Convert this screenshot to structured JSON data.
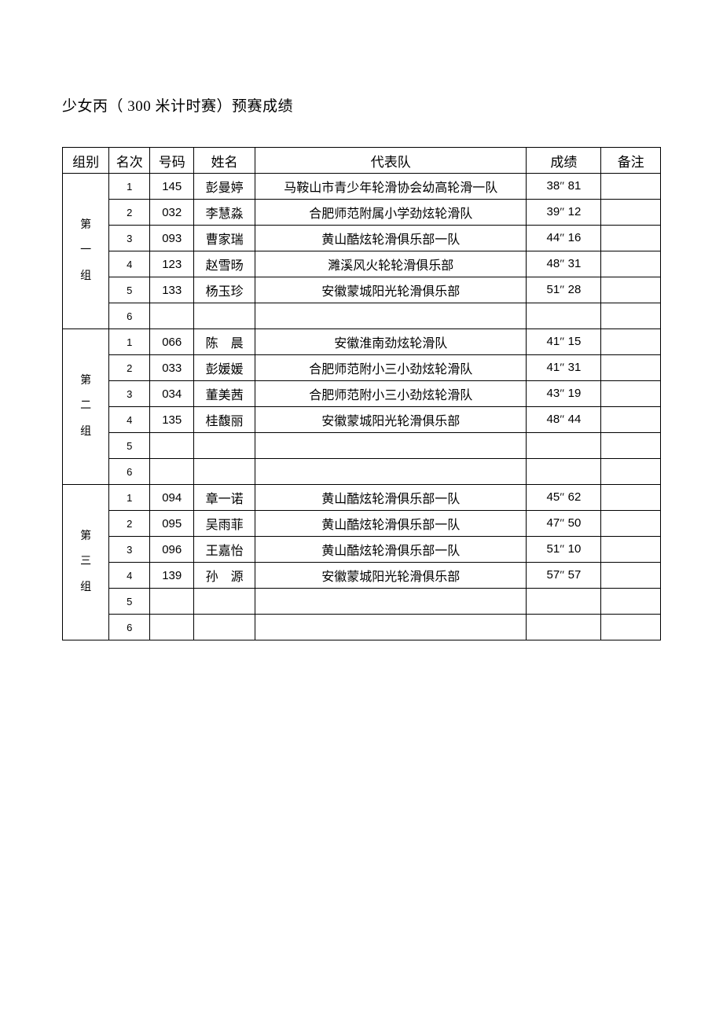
{
  "title": "少女丙（ 300 米计时赛）预赛成绩",
  "headers": {
    "group": "组别",
    "rank": "名次",
    "num": "号码",
    "name": "姓名",
    "team": "代表队",
    "score": "成绩",
    "note": "备注"
  },
  "groups": [
    {
      "label": "第<br>一<br>组",
      "rows": [
        {
          "rank": "1",
          "num": "145",
          "name": "彭曼婷",
          "team": "马鞍山市青少年轮滑协会幼高轮滑一队",
          "score_a": "38",
          "score_b": "81",
          "note": ""
        },
        {
          "rank": "2",
          "num": "032",
          "name": "李慧淼",
          "team": "合肥师范附属小学劲炫轮滑队",
          "score_a": "39",
          "score_b": "12",
          "note": ""
        },
        {
          "rank": "3",
          "num": "093",
          "name": "曹家瑞",
          "team": "黄山酷炫轮滑俱乐部一队",
          "score_a": "44",
          "score_b": "16",
          "note": ""
        },
        {
          "rank": "4",
          "num": "123",
          "name": "赵雪旸",
          "team": "濉溪风火轮轮滑俱乐部",
          "score_a": "48",
          "score_b": "31",
          "note": ""
        },
        {
          "rank": "5",
          "num": "133",
          "name": "杨玉珍",
          "team": "安徽蒙城阳光轮滑俱乐部",
          "score_a": "51",
          "score_b": "28",
          "note": ""
        },
        {
          "rank": "6",
          "num": "",
          "name": "",
          "team": "",
          "score_a": "",
          "score_b": "",
          "note": ""
        }
      ]
    },
    {
      "label": "第<br>二<br>组",
      "rows": [
        {
          "rank": "1",
          "num": "066",
          "name": "陈　晨",
          "team": "安徽淮南劲炫轮滑队",
          "score_a": "41",
          "score_b": "15",
          "note": ""
        },
        {
          "rank": "2",
          "num": "033",
          "name": "彭媛媛",
          "team": "合肥师范附小三小劲炫轮滑队",
          "score_a": "41",
          "score_b": "31",
          "note": ""
        },
        {
          "rank": "3",
          "num": "034",
          "name": "董美茜",
          "team": "合肥师范附小三小劲炫轮滑队",
          "score_a": "43",
          "score_b": "19",
          "note": ""
        },
        {
          "rank": "4",
          "num": "135",
          "name": "桂馥丽",
          "team": "安徽蒙城阳光轮滑俱乐部",
          "score_a": "48",
          "score_b": "44",
          "note": ""
        },
        {
          "rank": "5",
          "num": "",
          "name": "",
          "team": "",
          "score_a": "",
          "score_b": "",
          "note": ""
        },
        {
          "rank": "6",
          "num": "",
          "name": "",
          "team": "",
          "score_a": "",
          "score_b": "",
          "note": ""
        }
      ]
    },
    {
      "label": "第<br>三<br>组",
      "rows": [
        {
          "rank": "1",
          "num": "094",
          "name": "章一诺",
          "team": "黄山酷炫轮滑俱乐部一队",
          "score_a": "45",
          "score_b": "62",
          "note": ""
        },
        {
          "rank": "2",
          "num": "095",
          "name": "吴雨菲",
          "team": "黄山酷炫轮滑俱乐部一队",
          "score_a": "47",
          "score_b": "50",
          "note": ""
        },
        {
          "rank": "3",
          "num": "096",
          "name": "王嘉怡",
          "team": "黄山酷炫轮滑俱乐部一队",
          "score_a": "51",
          "score_b": "10",
          "note": ""
        },
        {
          "rank": "4",
          "num": "139",
          "name": "孙　源",
          "team": "安徽蒙城阳光轮滑俱乐部",
          "score_a": "57",
          "score_b": "57",
          "note": ""
        },
        {
          "rank": "5",
          "num": "",
          "name": "",
          "team": "",
          "score_a": "",
          "score_b": "",
          "note": ""
        },
        {
          "rank": "6",
          "num": "",
          "name": "",
          "team": "",
          "score_a": "",
          "score_b": "",
          "note": ""
        }
      ]
    }
  ]
}
